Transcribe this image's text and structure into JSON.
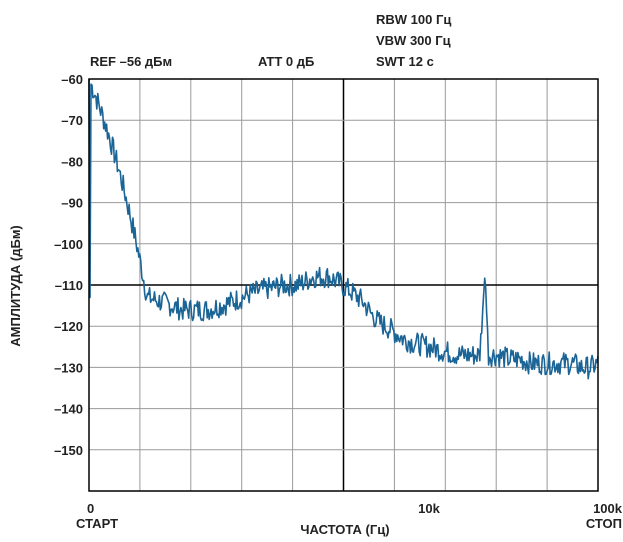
{
  "chart_data": {
    "type": "line",
    "title": "",
    "header": {
      "ref": "REF –56 дБм",
      "att": "ATT 0 дБ",
      "rbw": "RBW 100 Гц",
      "vbw": "VBW 300 Гц",
      "swt": "SWT 12 с"
    },
    "ylabel": "АМПЛИТУДА (дБм)",
    "xlabel": "ЧАСТОТА (Гц)",
    "ylim": [
      -160,
      -60
    ],
    "yticks": [
      {
        "value": -60,
        "label": "–60"
      },
      {
        "value": -70,
        "label": "–70"
      },
      {
        "value": -80,
        "label": "–80"
      },
      {
        "value": -90,
        "label": "–90"
      },
      {
        "value": -100,
        "label": "–100"
      },
      {
        "value": -110,
        "label": "–110"
      },
      {
        "value": -120,
        "label": "–120"
      },
      {
        "value": -130,
        "label": "–130"
      },
      {
        "value": -140,
        "label": "–140"
      },
      {
        "value": -150,
        "label": "–150"
      }
    ],
    "xlim": [
      0,
      100000
    ],
    "xticks": [
      {
        "value": 0,
        "label": "0",
        "sublabel": "СТАРТ"
      },
      {
        "value": 10000,
        "label": "10k",
        "sublabel": ""
      },
      {
        "value": 100000,
        "label": "100k",
        "sublabel": "СТОП"
      }
    ],
    "grid": true,
    "legend": "none",
    "colors": {
      "trace": "#1a6496",
      "grid": "#9a9a9a",
      "major": "#000000"
    },
    "series": [
      {
        "name": "",
        "note": "log-frequency sweep, x in Гц",
        "x": [
          0,
          120,
          250,
          400,
          600,
          800,
          1000,
          1300,
          1600,
          2000,
          2500,
          3000,
          3500,
          4000,
          4500,
          5000,
          6000,
          7000,
          8000,
          10000,
          12000,
          15000,
          18000,
          20000,
          21500,
          22500,
          25000,
          30000,
          35000,
          40000,
          50000,
          60000,
          70000,
          80000,
          90000,
          100000
        ],
        "values": [
          -60,
          -113,
          -116,
          -116,
          -114,
          -112,
          -111,
          -110,
          -110,
          -108,
          -108,
          -110,
          -112,
          -114,
          -117,
          -119,
          -121,
          -123,
          -124,
          -125,
          -126,
          -127,
          -127,
          -127,
          -107,
          -127,
          -127,
          -128,
          -128,
          -129,
          -129,
          -129,
          -129,
          -130,
          -130,
          -129
        ]
      }
    ]
  }
}
